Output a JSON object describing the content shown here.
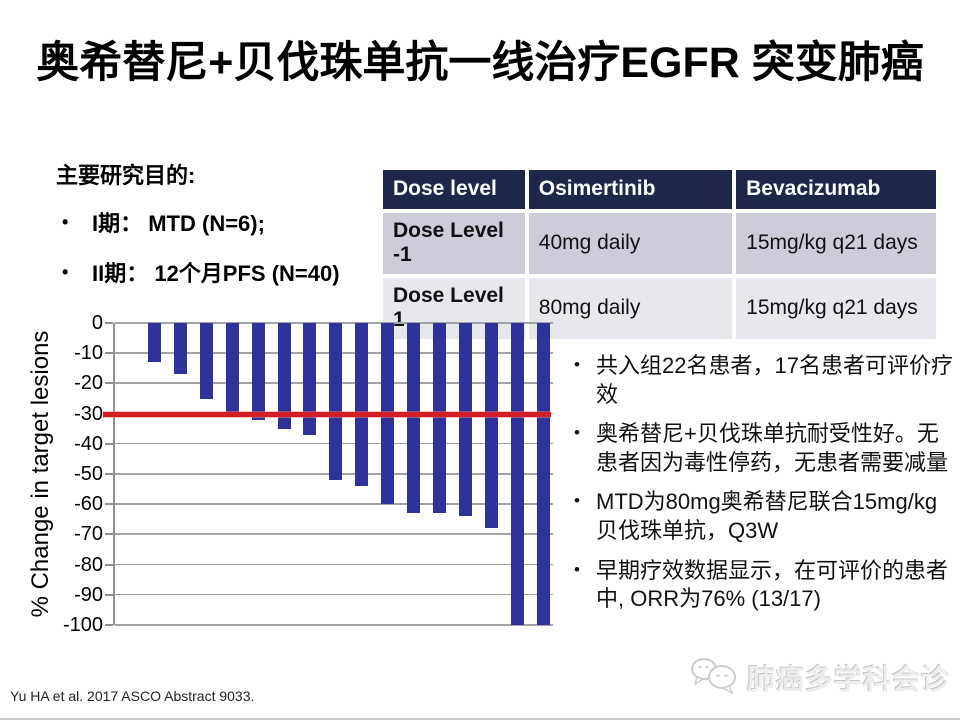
{
  "title": "奥希替尼+贝伐珠单抗一线治疗EGFR 突变肺癌",
  "goals": {
    "heading": "主要研究目的:",
    "items": [
      "I期： MTD (N=6);",
      "II期： 12个月PFS (N=40)"
    ]
  },
  "dose_table": {
    "columns": [
      "Dose level",
      "Osimertinib",
      "Bevacizumab"
    ],
    "rows": [
      [
        "Dose Level  -1",
        "40mg daily",
        "15mg/kg q21 days"
      ],
      [
        "Dose Level  1",
        "80mg daily",
        "15mg/kg q21 days"
      ]
    ]
  },
  "chart_data": {
    "type": "bar",
    "subtype": "waterfall",
    "title": "",
    "xlabel": "",
    "ylabel": "% Change in target lesions",
    "ylim": [
      -100,
      0
    ],
    "yticks": [
      0,
      -10,
      -20,
      -30,
      -40,
      -50,
      -60,
      -70,
      -80,
      -90,
      -100
    ],
    "values": [
      -13,
      -17,
      -25,
      -31,
      -32,
      -35,
      -37,
      -52,
      -54,
      -60,
      -63,
      -63,
      -64,
      -68,
      -100,
      -100
    ],
    "reference_line": {
      "y": -30,
      "color": "#d21f26"
    },
    "bar_color": "#2f329b",
    "gridline_color": "#a3a3a3",
    "grid": true,
    "legend": false
  },
  "findings": [
    "共入组22名患者，17名患者可评价疗效",
    "奥希替尼+贝伐珠单抗耐受性好。无患者因为毒性停药，无患者需要减量",
    "MTD为80mg奥希替尼联合15mg/kg贝伐珠单抗，Q3W",
    "早期疗效数据显示，在可评价的患者中, ORR为76% (13/17)"
  ],
  "footer": {
    "citation": "Yu HA et al. 2017 ASCO Abstract 9033."
  },
  "watermark": {
    "icon": "chat-bubbles-icon",
    "text": "肺癌多学科会诊"
  }
}
